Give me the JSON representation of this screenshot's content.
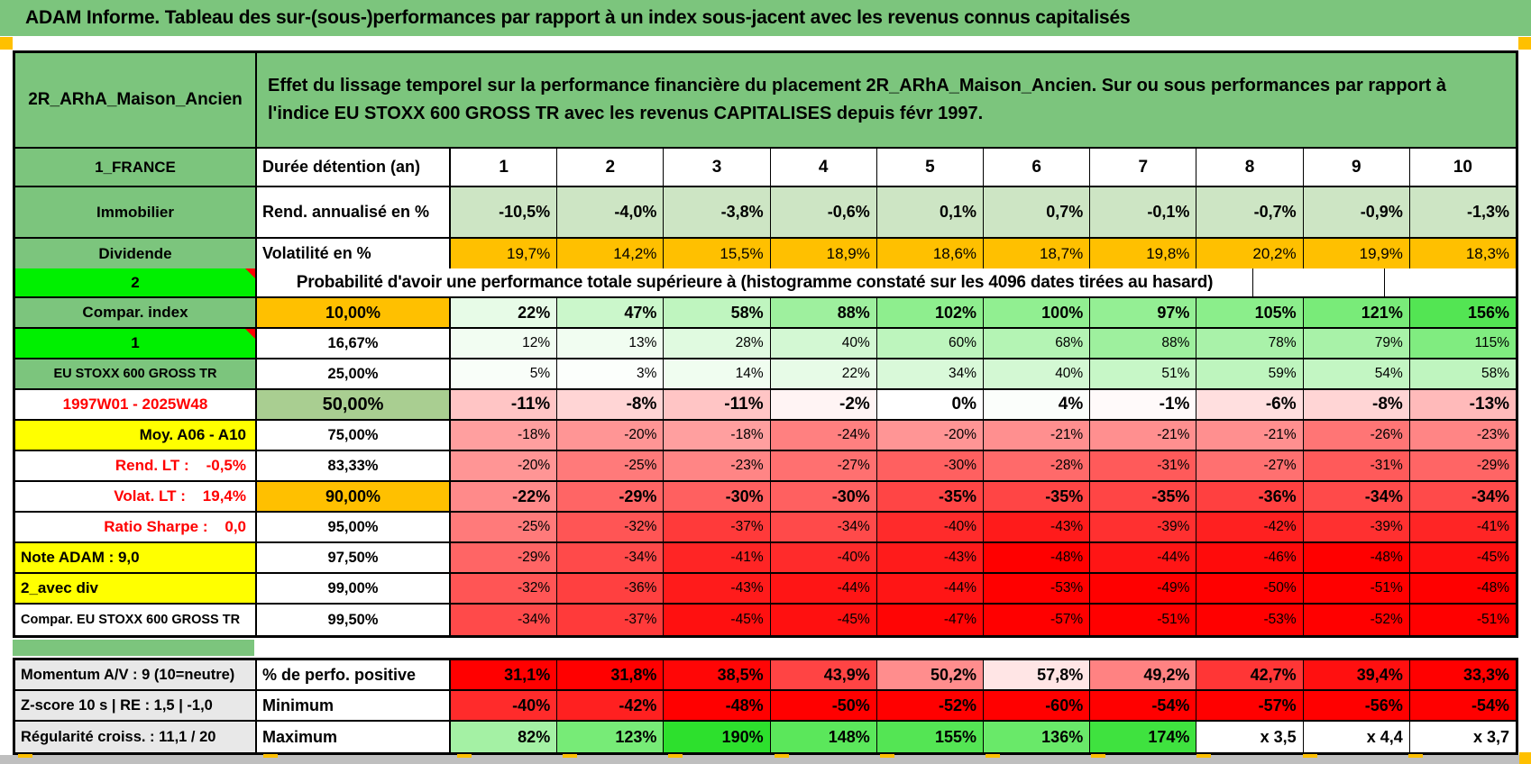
{
  "title": "ADAM Informe. Tableau des sur-(sous-)performances par rapport à un index sous-jacent avec les revenus connus capitalisés",
  "header": {
    "name": "2R_ARhA_Maison_Ancien",
    "description": "Effet du lissage temporel sur la performance financière du placement 2R_ARhA_Maison_Ancien. Sur ou sous performances par rapport à l'indice EU STOXX 600 GROSS TR avec les revenus CAPITALISES depuis févr 1997."
  },
  "duration_header": {
    "label_left": "1_FRANCE",
    "label_metric": "Durée détention (an)",
    "years": [
      "1",
      "2",
      "3",
      "4",
      "5",
      "6",
      "7",
      "8",
      "9",
      "10"
    ]
  },
  "stats_rows": [
    {
      "label": "Immobilier",
      "metric": "Rend. annualisé en %",
      "cell_bg": "light_green",
      "bold": true,
      "tall": true,
      "values": [
        "-10,5%",
        "-4,0%",
        "-3,8%",
        "-0,6%",
        "0,1%",
        "0,7%",
        "-0,1%",
        "-0,7%",
        "-0,9%",
        "-1,3%"
      ]
    },
    {
      "label": "Dividende",
      "metric": "Volatilité en %",
      "cell_bg": "orange",
      "bold": false,
      "values": [
        "19,7%",
        "14,2%",
        "15,5%",
        "18,9%",
        "18,6%",
        "18,7%",
        "19,8%",
        "20,2%",
        "19,9%",
        "18,3%"
      ]
    }
  ],
  "probability": {
    "corner_label": "2",
    "banner": "Probabilité d'avoir une performance totale supérieure à (histogramme constaté sur les 4096 dates tirées au hasard)"
  },
  "probability_rows": [
    {
      "label": "Compar. index",
      "label_bg": "green",
      "quantile": "10,00%",
      "quantile_bg": "orange",
      "bold": true,
      "values": [
        "22%",
        "47%",
        "58%",
        "88%",
        "102%",
        "100%",
        "97%",
        "105%",
        "121%",
        "156%"
      ]
    },
    {
      "label": "1",
      "label_bg": "bright",
      "note": true,
      "quantile": "16,67%",
      "thin": true,
      "values": [
        "12%",
        "13%",
        "28%",
        "40%",
        "60%",
        "68%",
        "88%",
        "78%",
        "79%",
        "115%"
      ]
    },
    {
      "label": "EU STOXX 600 GROSS TR",
      "label_bg": "green",
      "label_small": true,
      "quantile": "25,00%",
      "thin": true,
      "values": [
        "5%",
        "3%",
        "14%",
        "22%",
        "34%",
        "40%",
        "51%",
        "59%",
        "54%",
        "58%"
      ]
    },
    {
      "label": "1997W01 - 2025W48",
      "label_red": true,
      "quantile": "50,00%",
      "quantile_bg": "sage",
      "quantile_big": true,
      "bold": true,
      "big": true,
      "values": [
        "-11%",
        "-8%",
        "-11%",
        "-2%",
        "0%",
        "4%",
        "-1%",
        "-6%",
        "-8%",
        "-13%"
      ]
    },
    {
      "label": "Moy. A06 - A10",
      "label_bg": "yellow",
      "label_align": "right",
      "quantile": "75,00%",
      "thin": true,
      "values": [
        "-18%",
        "-20%",
        "-18%",
        "-24%",
        "-20%",
        "-21%",
        "-21%",
        "-21%",
        "-26%",
        "-23%"
      ]
    },
    {
      "label": "Rend. LT :    -0,5%",
      "label_red": true,
      "label_align": "right",
      "quantile": "83,33%",
      "thin": true,
      "values": [
        "-20%",
        "-25%",
        "-23%",
        "-27%",
        "-30%",
        "-28%",
        "-31%",
        "-27%",
        "-31%",
        "-29%"
      ]
    },
    {
      "label": "Volat. LT :    19,4%",
      "label_red": true,
      "label_align": "right",
      "quantile": "90,00%",
      "quantile_bg": "orange",
      "bold": true,
      "values": [
        "-22%",
        "-29%",
        "-30%",
        "-30%",
        "-35%",
        "-35%",
        "-35%",
        "-36%",
        "-34%",
        "-34%"
      ]
    },
    {
      "label": "Ratio Sharpe :    0,0",
      "label_red": true,
      "label_align": "right",
      "quantile": "95,00%",
      "thin": true,
      "values": [
        "-25%",
        "-32%",
        "-37%",
        "-34%",
        "-40%",
        "-43%",
        "-39%",
        "-42%",
        "-39%",
        "-41%"
      ]
    },
    {
      "label": "Note ADAM : 9,0",
      "label_bg": "yellow",
      "label_align": "left",
      "quantile": "97,50%",
      "thin": true,
      "values": [
        "-29%",
        "-34%",
        "-41%",
        "-40%",
        "-43%",
        "-48%",
        "-44%",
        "-46%",
        "-48%",
        "-45%"
      ]
    },
    {
      "label": "2_avec div",
      "label_bg": "yellow",
      "label_align": "left",
      "quantile": "99,00%",
      "thin": true,
      "values": [
        "-32%",
        "-36%",
        "-43%",
        "-44%",
        "-44%",
        "-53%",
        "-49%",
        "-50%",
        "-51%",
        "-48%"
      ]
    },
    {
      "label": "Compar. EU STOXX 600 GROSS TR",
      "label_align": "left",
      "label_small": true,
      "quantile": "99,50%",
      "thin": true,
      "values": [
        "-34%",
        "-37%",
        "-45%",
        "-45%",
        "-47%",
        "-57%",
        "-51%",
        "-53%",
        "-52%",
        "-51%"
      ]
    }
  ],
  "bottom_rows": [
    {
      "label": "Momentum A/V : 9 (10=neutre)",
      "metric": "% de perfo. positive",
      "scale": "low50",
      "values": [
        "31,1%",
        "31,8%",
        "38,5%",
        "43,9%",
        "50,2%",
        "57,8%",
        "49,2%",
        "42,7%",
        "39,4%",
        "33,3%"
      ]
    },
    {
      "label": "Z-score 10 s | RE : 1,5 | -1,0",
      "metric": "Minimum",
      "scale": "standard",
      "values": [
        "-40%",
        "-42%",
        "-48%",
        "-50%",
        "-52%",
        "-60%",
        "-54%",
        "-57%",
        "-56%",
        "-54%"
      ]
    },
    {
      "label": "Régularité croiss. : 11,1 / 20",
      "metric": "Maximum",
      "scale": "standard",
      "values": [
        "82%",
        "123%",
        "190%",
        "148%",
        "155%",
        "136%",
        "174%",
        "x 3,5",
        "x 4,4",
        "x 3,7"
      ]
    }
  ],
  "palette": {
    "green": "#7CC57D",
    "sage": "#A9CE91",
    "bright_green": "#00F000",
    "orange": "#FFC000",
    "yellow": "#FFFF00",
    "light_green": "#CDE5C4",
    "red_text": "#FF0000",
    "gray_label": "#E8E8E8",
    "bottom_bar": "#BFBFBF",
    "pos_end": "#22DE22",
    "neg_end": "#FF0000"
  }
}
